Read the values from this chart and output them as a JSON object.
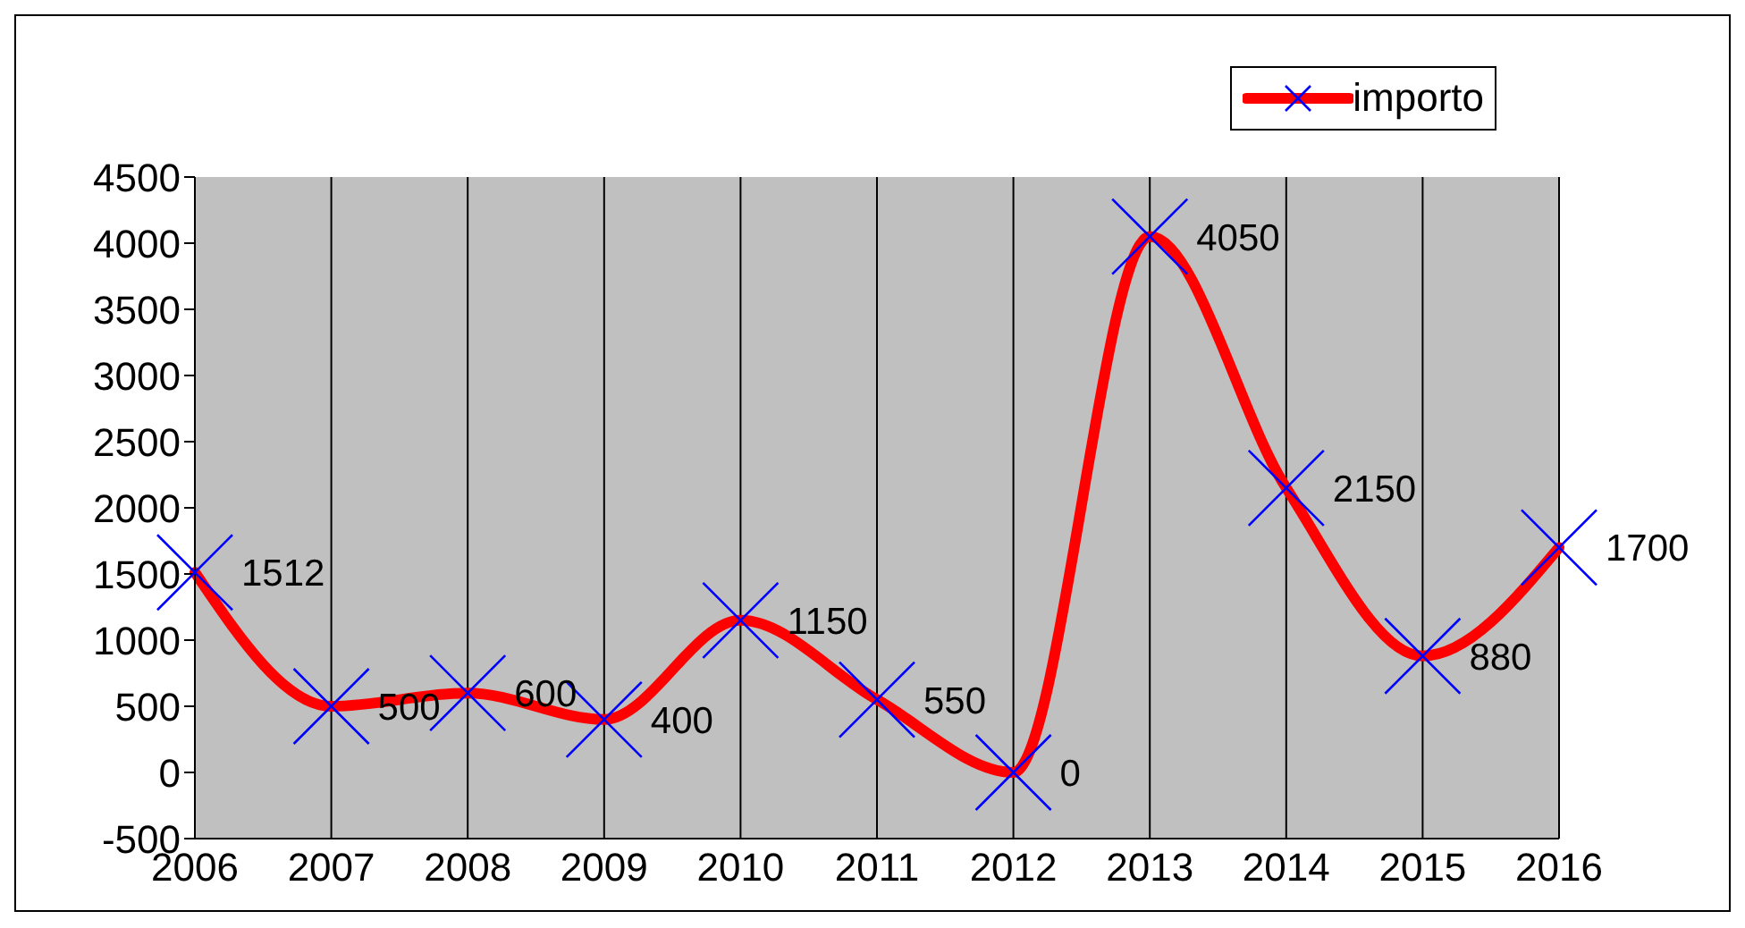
{
  "chart_data": {
    "type": "line",
    "categories": [
      "2006",
      "2007",
      "2008",
      "2009",
      "2010",
      "2011",
      "2012",
      "2013",
      "2014",
      "2015",
      "2016"
    ],
    "series": [
      {
        "name": "importo",
        "color": "#ff0000",
        "values": [
          1512,
          500,
          600,
          400,
          1150,
          550,
          0,
          4050,
          2150,
          880,
          1700
        ]
      }
    ],
    "ylim": [
      -500,
      4500
    ],
    "yticks": [
      -500,
      0,
      500,
      1000,
      1500,
      2000,
      2500,
      3000,
      3500,
      4000,
      4500
    ],
    "grid": "x",
    "legend": "top right",
    "marker": "cross",
    "line_style": "solid",
    "data_labels": true
  }
}
